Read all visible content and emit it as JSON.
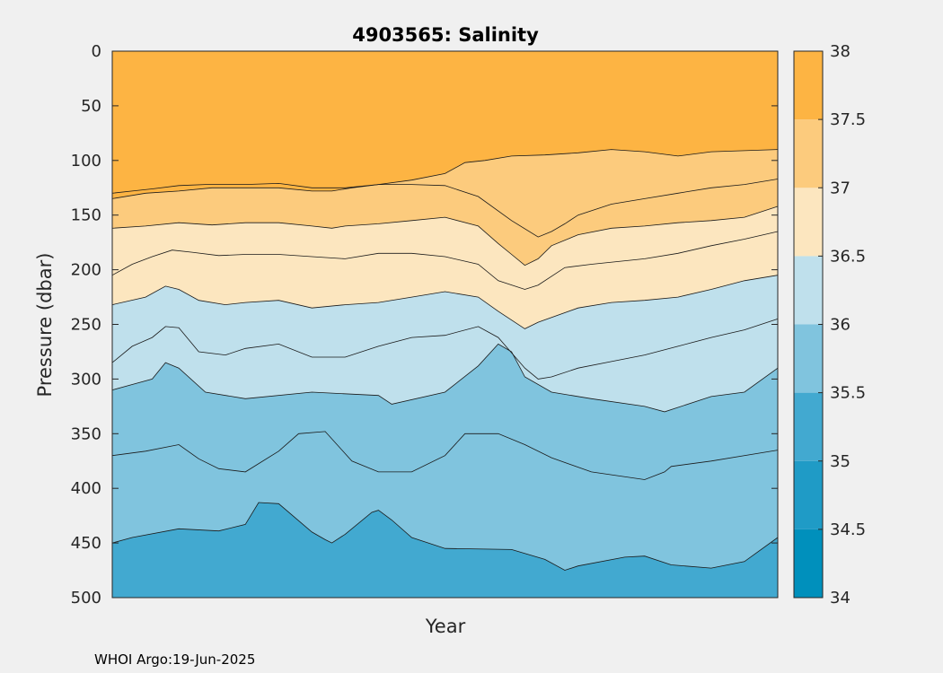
{
  "chart_data": {
    "type": "contour",
    "title": "4903565:  Salinity",
    "xlabel": "Year",
    "ylabel": "Pressure (dbar)",
    "ylim": [
      0,
      500
    ],
    "y_reversed": true,
    "yticks": [
      0,
      50,
      100,
      150,
      200,
      250,
      300,
      350,
      400,
      450,
      500
    ],
    "xticks": [],
    "grid": false,
    "colorbar": {
      "placement": "right",
      "ticks": [
        34,
        34.5,
        35,
        35.5,
        36,
        36.5,
        37,
        37.5,
        38
      ],
      "levels": [
        {
          "from": 34.0,
          "to": 34.5,
          "color": "#0090bc"
        },
        {
          "from": 34.5,
          "to": 35.0,
          "color": "#1f9bc6"
        },
        {
          "from": 35.0,
          "to": 35.5,
          "color": "#42a9d0"
        },
        {
          "from": 35.5,
          "to": 36.0,
          "color": "#80c4de"
        },
        {
          "from": 36.0,
          "to": 36.5,
          "color": "#bfe0ec"
        },
        {
          "from": 36.5,
          "to": 37.0,
          "color": "#fce6bf"
        },
        {
          "from": 37.0,
          "to": 37.5,
          "color": "#fccb7d"
        },
        {
          "from": 37.5,
          "to": 38.0,
          "color": "#fdb443"
        }
      ],
      "top_color": "#fd9b18"
    },
    "contours": [
      {
        "level": 35.5,
        "x": [
          0,
          0.03,
          0.1,
          0.16,
          0.2,
          0.22,
          0.25,
          0.3,
          0.32,
          0.33,
          0.35,
          0.39,
          0.4,
          0.42,
          0.45,
          0.5,
          0.6,
          0.65,
          0.68,
          0.7,
          0.77,
          0.8,
          0.84,
          0.9,
          0.95,
          1
        ],
        "y": [
          450,
          445,
          437,
          439,
          433,
          413,
          414,
          440,
          447,
          450,
          442,
          422,
          420,
          429,
          445,
          455,
          456,
          465,
          475,
          471,
          463,
          462,
          470,
          473,
          467,
          445
        ]
      },
      {
        "level": 35.8,
        "x": [
          0,
          0.05,
          0.1,
          0.13,
          0.16,
          0.2,
          0.25,
          0.28,
          0.32,
          0.36,
          0.4,
          0.45,
          0.5,
          0.53,
          0.58,
          0.62,
          0.66,
          0.72,
          0.8,
          0.83,
          0.84,
          0.9,
          1
        ],
        "y": [
          370,
          366,
          360,
          373,
          382,
          385,
          366,
          350,
          348,
          375,
          385,
          385,
          370,
          350,
          350,
          360,
          372,
          385,
          392,
          385,
          380,
          375,
          365
        ]
      },
      {
        "level": 36.0,
        "x": [
          0,
          0.03,
          0.06,
          0.08,
          0.1,
          0.14,
          0.2,
          0.3,
          0.4,
          0.42,
          0.5,
          0.55,
          0.58,
          0.6,
          0.62,
          0.66,
          0.72,
          0.8,
          0.83,
          0.9,
          0.95,
          1
        ],
        "y": [
          310,
          305,
          300,
          285,
          290,
          312,
          318,
          312,
          315,
          323,
          312,
          288,
          268,
          275,
          298,
          312,
          318,
          325,
          330,
          316,
          312,
          290
        ]
      },
      {
        "level": 36.2,
        "x": [
          0,
          0.03,
          0.06,
          0.08,
          0.1,
          0.13,
          0.17,
          0.2,
          0.25,
          0.3,
          0.35,
          0.4,
          0.45,
          0.5,
          0.55,
          0.58,
          0.62,
          0.64,
          0.66,
          0.7,
          0.75,
          0.8,
          0.85,
          0.9,
          0.95,
          1
        ],
        "y": [
          285,
          270,
          262,
          252,
          253,
          275,
          278,
          272,
          268,
          280,
          280,
          270,
          262,
          260,
          252,
          262,
          290,
          300,
          298,
          290,
          284,
          278,
          270,
          262,
          255,
          245
        ]
      },
      {
        "level": 36.5,
        "x": [
          0,
          0.05,
          0.08,
          0.1,
          0.13,
          0.17,
          0.2,
          0.25,
          0.3,
          0.35,
          0.4,
          0.45,
          0.5,
          0.55,
          0.58,
          0.62,
          0.64,
          0.7,
          0.75,
          0.8,
          0.85,
          0.9,
          0.95,
          1
        ],
        "y": [
          232,
          225,
          215,
          218,
          228,
          232,
          230,
          228,
          235,
          232,
          230,
          225,
          220,
          225,
          238,
          254,
          248,
          235,
          230,
          228,
          225,
          218,
          210,
          205
        ]
      },
      {
        "level": 36.7,
        "x": [
          0,
          0.03,
          0.06,
          0.09,
          0.12,
          0.16,
          0.2,
          0.25,
          0.3,
          0.35,
          0.4,
          0.45,
          0.5,
          0.55,
          0.58,
          0.62,
          0.64,
          0.68,
          0.72,
          0.8,
          0.85,
          0.9,
          0.95,
          1
        ],
        "y": [
          205,
          195,
          188,
          182,
          184,
          187,
          186,
          186,
          188,
          190,
          185,
          185,
          188,
          195,
          210,
          218,
          214,
          198,
          195,
          190,
          185,
          178,
          172,
          165
        ]
      },
      {
        "level": 37.0,
        "x": [
          0,
          0.05,
          0.1,
          0.15,
          0.2,
          0.25,
          0.3,
          0.33,
          0.35,
          0.4,
          0.45,
          0.5,
          0.55,
          0.58,
          0.6,
          0.62,
          0.64,
          0.66,
          0.7,
          0.75,
          0.8,
          0.85,
          0.9,
          0.95,
          1
        ],
        "y": [
          162,
          160,
          157,
          159,
          157,
          157,
          160,
          162,
          160,
          158,
          155,
          152,
          160,
          176,
          186,
          196,
          190,
          178,
          168,
          162,
          160,
          157,
          155,
          152,
          142
        ]
      },
      {
        "level": 37.3,
        "x": [
          0,
          0.03,
          0.06,
          0.1,
          0.14,
          0.18,
          0.2,
          0.25,
          0.3,
          0.35,
          0.4,
          0.45,
          0.5,
          0.55,
          0.6,
          0.64,
          0.66,
          0.68,
          0.7,
          0.75,
          0.8,
          0.85,
          0.9,
          0.95,
          1
        ],
        "y": [
          130,
          128,
          126,
          123,
          122,
          122,
          122,
          121,
          125,
          125,
          122,
          122,
          123,
          133,
          155,
          170,
          165,
          158,
          150,
          140,
          135,
          130,
          125,
          122,
          117
        ]
      },
      {
        "level": 37.5,
        "x": [
          0,
          0.05,
          0.1,
          0.15,
          0.2,
          0.25,
          0.3,
          0.33,
          0.36,
          0.4,
          0.45,
          0.5,
          0.53,
          0.56,
          0.6,
          0.65,
          0.7,
          0.75,
          0.8,
          0.85,
          0.9,
          1
        ],
        "y": [
          135,
          130,
          128,
          125,
          125,
          125,
          128,
          128,
          125,
          122,
          118,
          112,
          102,
          100,
          96,
          95,
          93,
          90,
          92,
          96,
          92,
          90
        ]
      }
    ]
  },
  "footer": {
    "text": "WHOI Argo:19-Jun-2025"
  }
}
